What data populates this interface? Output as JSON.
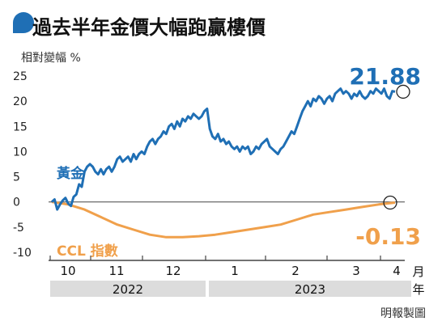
{
  "chart_data": {
    "type": "line",
    "title": "過去半年金價大幅跑贏樓價",
    "ylabel": "相對變幅 %",
    "ylim": [
      -10,
      25
    ],
    "yticks": [
      25,
      20,
      15,
      10,
      5,
      0,
      -5,
      -10
    ],
    "xlabel": "月",
    "xlabel_year": "年",
    "month_labels": [
      "10",
      "11",
      "12",
      "1",
      "2",
      "4"
    ],
    "month_label_3": "3",
    "years": [
      "2022",
      "2023"
    ],
    "grid": false,
    "colors": {
      "gold": "#1f6fb5",
      "ccl": "#f0a04b",
      "year_band": "#dcdcdc",
      "axis": "#444444"
    },
    "series": [
      {
        "name": "黃金",
        "label": "黃金",
        "end_label": "21.88",
        "x": [
          0,
          1,
          2,
          3,
          4,
          5,
          6,
          7,
          8,
          9,
          10,
          11,
          12,
          13,
          14,
          15,
          16,
          17,
          18,
          19,
          20,
          21,
          22,
          23,
          24,
          25,
          26,
          27,
          28,
          29,
          30,
          31,
          32,
          33,
          34,
          35,
          36,
          37,
          38,
          39,
          40,
          41,
          42,
          43,
          44,
          45,
          46,
          47,
          48,
          49,
          50,
          51,
          52,
          53,
          54,
          55,
          56,
          57,
          58,
          59,
          60,
          61,
          62,
          63,
          64,
          65,
          66,
          67,
          68,
          69,
          70,
          71,
          72,
          73,
          74,
          75,
          76,
          77,
          78,
          79,
          80,
          81,
          82,
          83,
          84,
          85,
          86,
          87,
          88,
          89,
          90,
          91,
          92,
          93,
          94,
          95,
          96,
          97,
          98,
          99,
          100,
          101,
          102,
          103,
          104,
          105,
          106,
          107,
          108,
          109,
          110,
          111,
          112,
          113,
          114,
          115,
          116,
          117,
          118,
          119,
          120,
          121,
          122,
          123,
          124,
          125,
          126
        ],
        "values": [
          0,
          0.5,
          -1.5,
          -0.5,
          0.3,
          0.8,
          -0.3,
          -0.8,
          1.0,
          1.5,
          3.5,
          3.0,
          6.0,
          7.0,
          7.5,
          7.0,
          6.0,
          5.5,
          6.5,
          5.5,
          6.5,
          7.0,
          6.0,
          7.0,
          8.5,
          9.0,
          8.0,
          8.5,
          9.0,
          8.0,
          9.5,
          8.5,
          9.5,
          10.0,
          9.5,
          11.0,
          12.0,
          12.5,
          11.5,
          12.5,
          13.0,
          14.0,
          13.5,
          15.0,
          15.5,
          14.5,
          16.0,
          15.0,
          16.5,
          16.0,
          17.0,
          16.5,
          17.5,
          17.0,
          16.5,
          17.0,
          18.0,
          18.5,
          14.5,
          13.0,
          12.5,
          13.5,
          12.0,
          12.5,
          11.5,
          12.0,
          11.0,
          10.5,
          11.0,
          10.0,
          11.0,
          10.5,
          11.0,
          9.5,
          10.0,
          11.0,
          10.5,
          11.5,
          12.0,
          12.5,
          11.0,
          10.5,
          10.0,
          9.5,
          10.5,
          11.0,
          12.0,
          13.0,
          14.0,
          13.5,
          15.0,
          16.5,
          18.0,
          19.0,
          20.0,
          19.0,
          20.5,
          20.0,
          21.0,
          20.5,
          19.5,
          20.5,
          21.0,
          20.0,
          21.5,
          22.0,
          22.5,
          21.5,
          22.0,
          21.5,
          20.5,
          21.5,
          21.0,
          22.0,
          21.0,
          20.5,
          21.0,
          22.0,
          21.5,
          22.5,
          22.0,
          21.5,
          22.5,
          21.0,
          20.5,
          22.0,
          21.88
        ]
      },
      {
        "name": "CCL 指數",
        "label": "CCL 指數",
        "end_label": "-0.13",
        "x": [
          0,
          6,
          12,
          18,
          24,
          30,
          36,
          42,
          48,
          54,
          60,
          66,
          72,
          78,
          84,
          90,
          96,
          102,
          108,
          114,
          120,
          126
        ],
        "values": [
          0,
          -0.5,
          -1.5,
          -3.0,
          -4.5,
          -5.5,
          -6.5,
          -7.0,
          -7.0,
          -6.8,
          -6.5,
          -6.0,
          -5.5,
          -5.0,
          -4.5,
          -3.5,
          -2.5,
          -2.0,
          -1.5,
          -1.0,
          -0.5,
          -0.13
        ]
      }
    ]
  },
  "credit": "明報製圖"
}
